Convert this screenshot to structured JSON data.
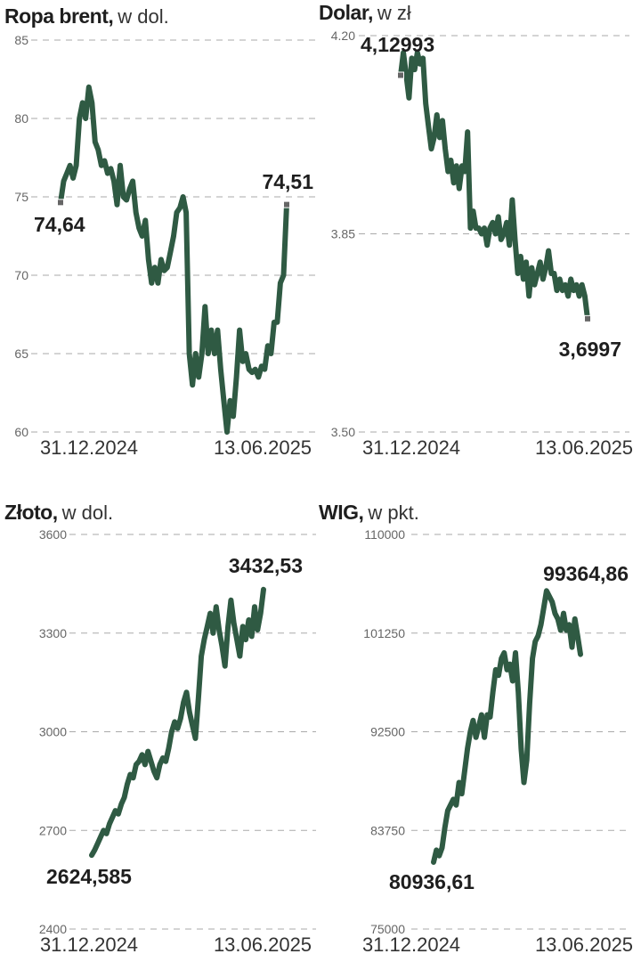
{
  "chart_data": [
    {
      "type": "line",
      "title": "Ropa brent,",
      "subtitle": "w dol.",
      "yticks": [
        "85",
        "80",
        "75",
        "70",
        "65",
        "60"
      ],
      "ytick_values": [
        85,
        80,
        75,
        70,
        65,
        60
      ],
      "ylim": [
        60,
        85
      ],
      "xticks": [
        "31.12.2024",
        "13.06.2025"
      ],
      "start_label": "74,64",
      "end_label": "74,51",
      "values": [
        74.64,
        76,
        76.5,
        77,
        76.2,
        77,
        80,
        81,
        80,
        82,
        81,
        78.5,
        78,
        77,
        77.3,
        76.5,
        76.8,
        76,
        74.5,
        77,
        75,
        74.8,
        75.5,
        76,
        74,
        73,
        72.5,
        73.5,
        71,
        69.5,
        70.5,
        69.5,
        71,
        70.3,
        70.5,
        71.5,
        72.5,
        74,
        74.3,
        75,
        74,
        65,
        63,
        65,
        63.5,
        65,
        68,
        65,
        66.5,
        65,
        66.5,
        64,
        62,
        60,
        62,
        61,
        63.5,
        66.5,
        64.5,
        65,
        64,
        63.8,
        64,
        63.5,
        64.2,
        64,
        65.5,
        65,
        67,
        67,
        69.5,
        70,
        74.51
      ],
      "markers": true
    },
    {
      "type": "line",
      "title": "Dolar,",
      "subtitle": "w zł",
      "yticks": [
        "4.20",
        "3.85",
        "3.50"
      ],
      "ytick_values": [
        4.2,
        3.85,
        3.5
      ],
      "ylim": [
        3.5,
        4.2
      ],
      "xticks": [
        "31.12.2024",
        "13.06.2025"
      ],
      "start_label": "4,12993",
      "end_label": "3,6997",
      "values": [
        4.13,
        4.17,
        4.13,
        4.09,
        4.16,
        4.14,
        4.17,
        4.15,
        4.16,
        4.08,
        4.04,
        4.0,
        4.02,
        4.06,
        4.02,
        4.05,
        4.0,
        3.96,
        3.98,
        3.94,
        3.97,
        3.93,
        3.97,
        3.96,
        4.03,
        3.86,
        3.89,
        3.86,
        3.86,
        3.85,
        3.86,
        3.83,
        3.86,
        3.87,
        3.85,
        3.88,
        3.84,
        3.85,
        3.87,
        3.83,
        3.91,
        3.84,
        3.78,
        3.81,
        3.77,
        3.8,
        3.74,
        3.79,
        3.76,
        3.78,
        3.8,
        3.77,
        3.79,
        3.82,
        3.78,
        3.78,
        3.75,
        3.77,
        3.75,
        3.76,
        3.74,
        3.77,
        3.75,
        3.76,
        3.74,
        3.76,
        3.74,
        3.7
      ],
      "markers": true
    },
    {
      "type": "line",
      "title": "Złoto,",
      "subtitle": "w dol.",
      "yticks": [
        "3600",
        "3300",
        "3000",
        "2700",
        "2400"
      ],
      "ytick_values": [
        3600,
        3300,
        3000,
        2700,
        2400
      ],
      "ylim": [
        2400,
        3600
      ],
      "xticks": [
        "31.12.2024",
        "13.06.2025"
      ],
      "start_label": "2624,585",
      "end_label": "3432,53",
      "values": [
        2624.585,
        2640,
        2660,
        2680,
        2700,
        2690,
        2720,
        2740,
        2760,
        2750,
        2780,
        2800,
        2840,
        2870,
        2860,
        2900,
        2910,
        2930,
        2900,
        2940,
        2910,
        2880,
        2860,
        2900,
        2920,
        2910,
        2950,
        3000,
        3030,
        3010,
        3040,
        3090,
        3120,
        3060,
        3020,
        2980,
        3100,
        3230,
        3280,
        3320,
        3360,
        3300,
        3380,
        3310,
        3260,
        3200,
        3320,
        3400,
        3330,
        3280,
        3230,
        3320,
        3280,
        3340,
        3290,
        3380,
        3310,
        3360,
        3432.53
      ],
      "markers": false
    },
    {
      "type": "line",
      "title": "WIG,",
      "subtitle": "w pkt.",
      "yticks": [
        "110000",
        "101250",
        "92500",
        "83750",
        "75000"
      ],
      "ytick_values": [
        110000,
        101250,
        92500,
        83750,
        75000
      ],
      "ylim": [
        75000,
        110000
      ],
      "xticks": [
        "31.12.2024",
        "13.06.2025"
      ],
      "start_label": "80936,61",
      "end_label": "99364,86",
      "values": [
        80936.61,
        82000,
        81500,
        82200,
        84000,
        85500,
        86000,
        86500,
        86000,
        88000,
        87000,
        89000,
        91000,
        92500,
        93500,
        92000,
        93000,
        94000,
        92000,
        94000,
        93800,
        96000,
        98000,
        97500,
        99000,
        99500,
        98000,
        98500,
        97000,
        99500,
        96000,
        91000,
        88000,
        90000,
        95000,
        99000,
        100500,
        101000,
        102000,
        103500,
        105000,
        104500,
        104000,
        103000,
        102500,
        101500,
        103000,
        101500,
        102000,
        100000,
        102500,
        101000,
        99364.86
      ],
      "markers": false
    }
  ]
}
